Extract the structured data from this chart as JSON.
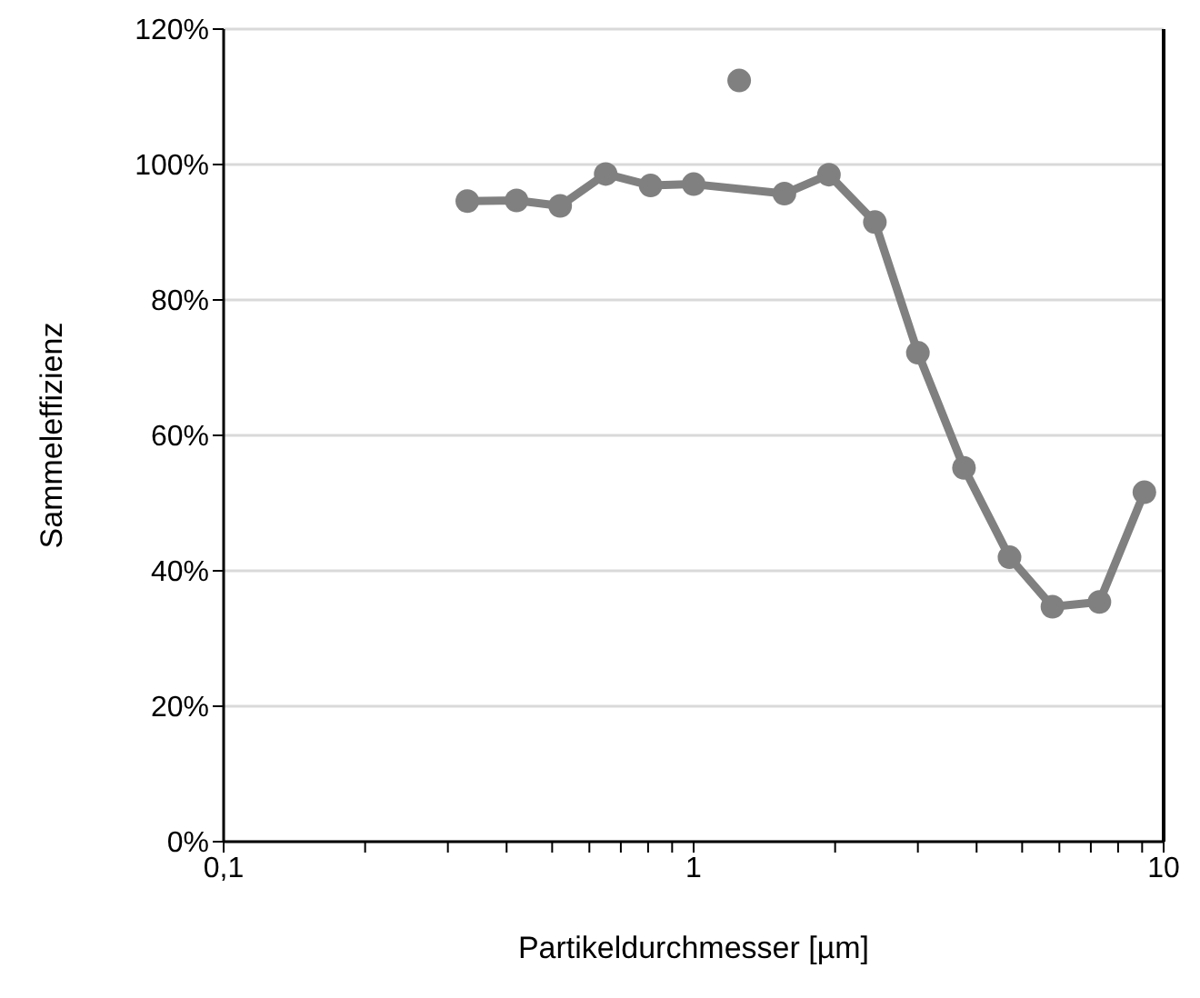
{
  "chart_data": {
    "type": "line",
    "xlabel": "Partikeldurchmesser [µm]",
    "ylabel": "Sammeleffizienz",
    "log": "x",
    "grid": "y",
    "marker": "circle",
    "line_style": "solid",
    "xlim": [
      0.1,
      10
    ],
    "xticks": [
      {
        "value": 0.1,
        "label": "0,1"
      },
      {
        "value": 0.2,
        "label": null
      },
      {
        "value": 0.3,
        "label": null
      },
      {
        "value": 0.4,
        "label": null
      },
      {
        "value": 0.5,
        "label": null
      },
      {
        "value": 0.6,
        "label": null
      },
      {
        "value": 0.7,
        "label": null
      },
      {
        "value": 0.8,
        "label": null
      },
      {
        "value": 0.9,
        "label": null
      },
      1,
      {
        "value": 2,
        "label": null
      },
      {
        "value": 3,
        "label": null
      },
      {
        "value": 4,
        "label": null
      },
      {
        "value": 5,
        "label": null
      },
      {
        "value": 6,
        "label": null
      },
      {
        "value": 7,
        "label": null
      },
      {
        "value": 8,
        "label": null
      },
      {
        "value": 9,
        "label": null
      },
      10
    ],
    "ylim": [
      0,
      120
    ],
    "yticks": [
      {
        "value": 0,
        "label": "0%"
      },
      {
        "value": 20,
        "label": "20%"
      },
      {
        "value": 40,
        "label": "40%"
      },
      {
        "value": 60,
        "label": "60%"
      },
      {
        "value": 80,
        "label": "80%"
      },
      {
        "value": 100,
        "label": "100%"
      },
      {
        "value": 120,
        "label": "120%"
      }
    ],
    "series": [
      {
        "color": "#808080",
        "x": [
          0.33,
          0.42,
          0.52,
          0.65,
          0.81,
          1.0,
          1.56,
          1.94,
          2.43,
          3.0,
          3.76,
          4.7,
          5.8,
          7.3,
          9.1
        ],
        "values": [
          94.6,
          94.7,
          93.9,
          98.6,
          96.9,
          97.1,
          95.7,
          98.5,
          91.5,
          72.2,
          55.2,
          42.0,
          34.7,
          35.4,
          51.6
        ]
      },
      {
        "type": "scatter",
        "color": "#808080",
        "x": [
          1.25
        ],
        "values": [
          112.4
        ]
      }
    ]
  }
}
